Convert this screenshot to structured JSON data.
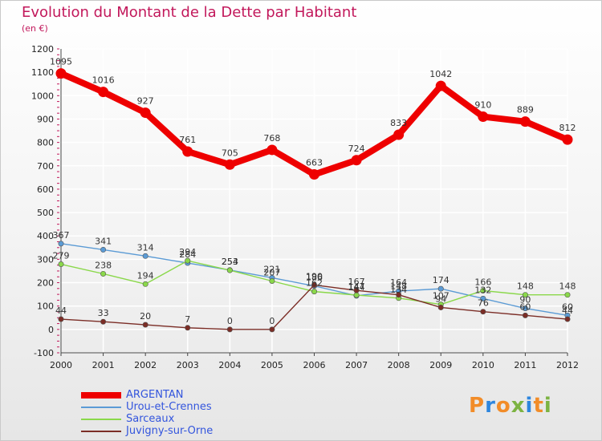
{
  "header": {
    "title": "Evolution du Montant de la Dette par Habitant",
    "subtitle": "(en €)"
  },
  "brand": {
    "text": "Proxiti",
    "letter_colors": [
      "#f28c28",
      "#2e86de",
      "#f28c28",
      "#7cb342",
      "#2e86de",
      "#f28c28",
      "#7cb342"
    ]
  },
  "colors": {
    "title": "#c2185b",
    "grid": "#ffffff",
    "axis": "#444444"
  },
  "chart_data": {
    "type": "line",
    "title": "Evolution du Montant de la Dette par Habitant",
    "subtitle": "(en €)",
    "xlabel": "",
    "ylabel": "",
    "x": [
      "2000",
      "2001",
      "2002",
      "2003",
      "2004",
      "2005",
      "2006",
      "2007",
      "2008",
      "2009",
      "2010",
      "2011",
      "2012"
    ],
    "ylim": [
      -100,
      1200
    ],
    "yticks": [
      -100,
      0,
      100,
      200,
      300,
      400,
      500,
      600,
      700,
      800,
      900,
      1000,
      1100,
      1200
    ],
    "grid": true,
    "legend_position": "bottom-left",
    "series": [
      {
        "name": "ARGENTAN",
        "color": "#ee0000",
        "label_color": "#3355dd",
        "emphasis": true,
        "values": [
          1095,
          1016,
          927,
          761,
          705,
          768,
          663,
          724,
          833,
          1042,
          910,
          889,
          812
        ],
        "labels": [
          "1095",
          "1016",
          "927",
          "761",
          "705",
          "768",
          "663",
          "724",
          "833",
          "1042",
          "910",
          "889",
          "812"
        ]
      },
      {
        "name": "Urou-et-Crennes",
        "color": "#5b9bd5",
        "label_color": "#3355dd",
        "values": [
          367,
          341,
          314,
          284,
          254,
          221,
          186,
          144,
          164,
          174,
          132,
          90,
          60
        ],
        "labels": [
          "367",
          "341",
          "314",
          "284",
          "254",
          "221",
          "186",
          "144",
          "164",
          "174",
          "132",
          "90",
          "60"
        ]
      },
      {
        "name": "Sarceaux",
        "color": "#8ad84a",
        "label_color": "#3355dd",
        "values": [
          279,
          238,
          194,
          294,
          253,
          207,
          162,
          147,
          134,
          107,
          166,
          148,
          148
        ],
        "labels": [
          "279",
          "238",
          "194",
          "294",
          "253",
          "207",
          "162",
          "147",
          "134",
          "107",
          "166",
          "148",
          "148"
        ]
      },
      {
        "name": "Juvigny-sur-Orne",
        "color": "#7b2d26",
        "label_color": "#3355dd",
        "values": [
          44,
          33,
          20,
          7,
          0,
          0,
          190,
          167,
          148,
          94,
          76,
          60,
          44
        ],
        "labels": [
          "44",
          "33",
          "20",
          "7",
          "0",
          "0",
          "190",
          "167",
          "148",
          "94",
          "76",
          "60",
          "44"
        ]
      }
    ]
  }
}
